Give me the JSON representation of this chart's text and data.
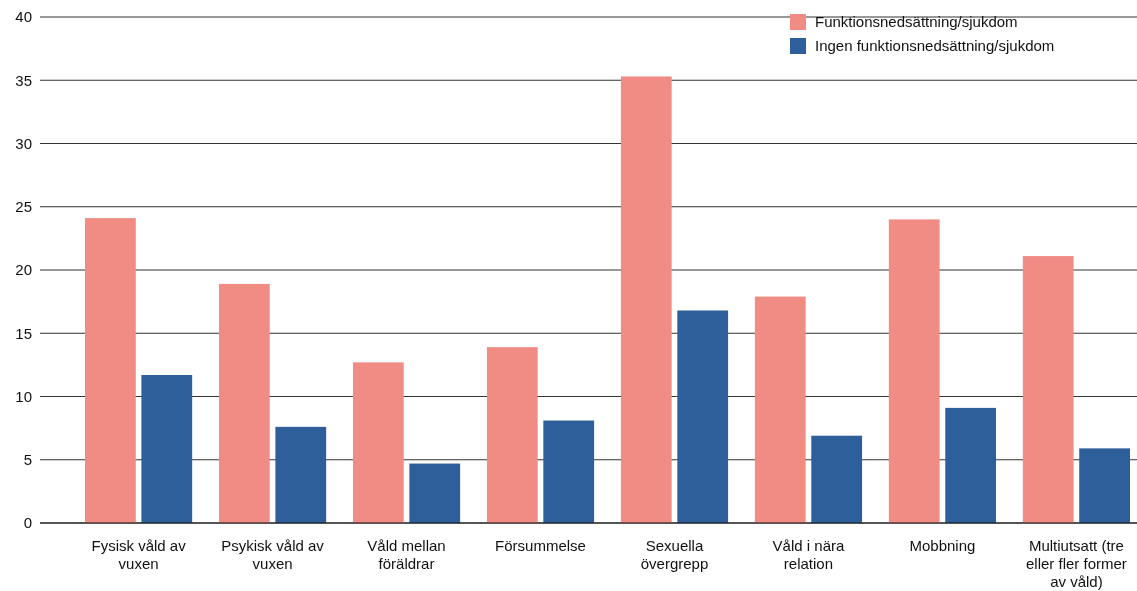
{
  "chart_data": {
    "type": "bar",
    "categories": [
      "Fysisk våld av vuxen",
      "Psykisk våld av vuxen",
      "Våld mellan föräldrar",
      "Försummelse",
      "Sexuella övergrepp",
      "Våld i nära relation",
      "Mobbning",
      "Multiutsatt (tre eller fler former av våld)"
    ],
    "series": [
      {
        "name": "Funktionsnedsättning/sjukdom",
        "color": "#f08c84",
        "values": [
          24.1,
          18.9,
          12.7,
          13.9,
          35.3,
          17.9,
          24.0,
          21.1
        ]
      },
      {
        "name": "Ingen funktionsnedsättning/sjukdom",
        "color": "#2f5f9b",
        "values": [
          11.7,
          7.6,
          4.7,
          8.1,
          16.8,
          6.9,
          9.1,
          5.9
        ]
      }
    ],
    "ylim": [
      0,
      40
    ],
    "yticks": [
      0,
      5,
      10,
      15,
      20,
      25,
      30,
      35,
      40
    ],
    "grid": "y",
    "legend": "top right"
  }
}
